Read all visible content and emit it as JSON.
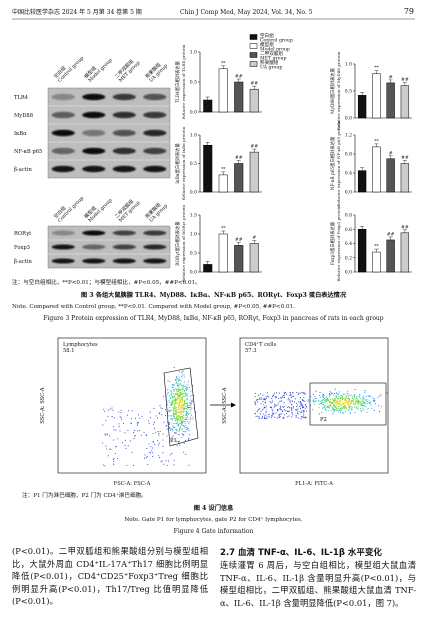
{
  "header": {
    "journal_zh": "中国比较医学杂志 2024 年 5 月第 34 卷第 5 期",
    "journal_en": "Chin J Comp Med, May 2024, Vol. 34, No. 5",
    "page": 79
  },
  "figure3": {
    "legend": [
      {
        "label_zh": "空白组",
        "label_en": "Control group",
        "color": "#111111"
      },
      {
        "label_zh": "模型组",
        "label_en": "Model group",
        "color": "#ffffff"
      },
      {
        "label_zh": "二甲双胍组",
        "label_en": "MET group",
        "color": "#555555"
      },
      {
        "label_zh": "熊果酸组",
        "label_en": "UA group",
        "color": "#cccccc"
      }
    ],
    "blots": [
      {
        "columns": [
          {
            "zh": "空白组",
            "en": "Control group"
          },
          {
            "zh": "模型组",
            "en": "Model group"
          },
          {
            "zh": "二甲双胍组",
            "en": "MET group"
          },
          {
            "zh": "熊果酸组",
            "en": "UA group"
          }
        ],
        "rows": [
          "TLR4",
          "MyD88",
          "IκBα",
          "NF-κB p65",
          "β-actin"
        ]
      },
      {
        "columns": [
          {
            "zh": "空白组",
            "en": "Control group"
          },
          {
            "zh": "模型组",
            "en": "Model group"
          },
          {
            "zh": "二甲双胍组",
            "en": "MET group"
          },
          {
            "zh": "熊果酸组",
            "en": "UA group"
          }
        ],
        "rows": [
          "RORγt",
          "Foxp3",
          "β-actin"
        ]
      }
    ],
    "charts": [
      {
        "type": "bar",
        "ylabel_zh": "TLR4蛋白相对表达量",
        "ylabel_en": "Relative expression of TLR4 protein",
        "values": [
          0.2,
          0.72,
          0.5,
          0.38
        ],
        "annotations": [
          null,
          "**",
          "##",
          "##"
        ],
        "ylim": [
          0,
          1
        ],
        "yticks": [
          {
            "value": 0,
            "label": "0.0"
          },
          0.5,
          {
            "value": 1,
            "label": "1.0"
          }
        ]
      },
      {
        "type": "bar",
        "ylabel_zh": "MyD88蛋白相对表达量",
        "ylabel_en": "Relative expression of MyD88 protein",
        "values": [
          0.42,
          0.82,
          0.65,
          0.6
        ],
        "annotations": [
          null,
          "**",
          "#",
          "##"
        ],
        "ylim": [
          0,
          1
        ],
        "yticks": [
          {
            "value": 0,
            "label": "0.0"
          },
          0.5,
          {
            "value": 1,
            "label": "1.0"
          }
        ]
      },
      {
        "type": "bar",
        "ylabel_zh": "IκBα蛋白相对表达量",
        "ylabel_en": "Relative expression of IκBα protein",
        "values": [
          0.82,
          0.3,
          0.5,
          0.7
        ],
        "annotations": [
          null,
          "**",
          "##",
          "##"
        ],
        "ylim": [
          0,
          1
        ],
        "yticks": [
          {
            "value": 0,
            "label": "0.0"
          },
          0.5,
          {
            "value": 1,
            "label": "1.0"
          }
        ]
      },
      {
        "type": "bar",
        "ylabel_zh": "NF-κB p65蛋白相对表达量",
        "ylabel_en": "Relative expression of NF-κB p65 protein",
        "values": [
          0.45,
          0.95,
          0.7,
          0.6
        ],
        "annotations": [
          null,
          "**",
          "#",
          "##"
        ],
        "ylim": [
          0,
          1.2
        ],
        "yticks": [
          {
            "value": 0,
            "label": "0.0"
          },
          0.4,
          0.8,
          1.2
        ]
      },
      {
        "type": "bar",
        "ylabel_zh": "RORγt蛋白相对表达量",
        "ylabel_en": "Relative expression of RORγt protein",
        "values": [
          0.2,
          1.0,
          0.7,
          0.75
        ],
        "annotations": [
          null,
          "**",
          "##",
          "#"
        ],
        "ylim": [
          0,
          1.5
        ],
        "yticks": [
          {
            "value": 0,
            "label": "0.0"
          },
          0.5,
          {
            "value": 1,
            "label": "1.0"
          },
          1.5
        ]
      },
      {
        "type": "bar",
        "ylabel_zh": "Foxp3蛋白相对表达量",
        "ylabel_en": "Relative expression of Foxp3 protein",
        "values": [
          0.6,
          0.28,
          0.45,
          0.55
        ],
        "annotations": [
          null,
          "**",
          "##",
          "##"
        ],
        "ylim": [
          0,
          0.8
        ],
        "yticks": [
          {
            "value": 0,
            "label": "0.0"
          },
          0.2,
          0.4,
          0.6,
          0.8
        ]
      }
    ],
    "note_zh": "注：与空白组相比，**P<0.01；与模型组相比，#P<0.05，##P<0.01。",
    "caption_zh": "图 3  各组大鼠胰腺 TLR4、MyD88、IκBα、NF-κB p65、RORγt、Foxp3 蛋白表达情况",
    "note_en": "Note. Compared with Control group, **P<0.01. Compared with Model group, #P<0.05, ##P<0.01.",
    "caption_en": "Figure 3  Protein expression of TLR4, MyD88, IκBα, NF-κB p65, RORγt, Foxp3 in pancreas of rats in each group"
  },
  "figure4": {
    "plots": [
      {
        "gate_name": "Lymphocytes",
        "gate_value": 58.1,
        "gate_id": "P1",
        "xlabel": "FSC-A: FSC-A",
        "ylabel": "SSC-A: SSC-A"
      },
      {
        "gate_name": "CD4⁺T cells",
        "gate_value": 57.3,
        "gate_id": "P2",
        "xlabel": "FL1-A: FITC-A",
        "ylabel": "SSC-A: SSC-A"
      }
    ],
    "note_zh": "注：P1 门为淋巴细胞，P2 门为 CD4⁺淋巴细胞。",
    "caption_zh": "图 4  设门信息",
    "note_en": "Note. Gate P1 for lymphocytes, gate P2 for CD4⁺ lymphocytes.",
    "caption_en": "Figure 4  Gate information"
  },
  "body": {
    "left": "(P<0.01)。二甲双胍组和熊果酸组分别与模型组相比，大鼠外周血 CD4⁺IL-17A⁺Th17 细胞比例明显降低(P<0.01)，CD4⁺CD25⁺Foxp3⁺Treg 细胞比例明显升高(P<0.01)，Th17/Treg 比值明显降低(P<0.01)。",
    "heading": "2.7  血清 TNF-α、IL-6、IL-1β 水平变化",
    "right": "连续灌胃 6 周后，与空白组相比，模型组大鼠血清 TNF-α、IL-6、IL-1β 含量明显升高(P<0.01)，与模型组相比，二甲双胍组、熊果酸组大鼠血清 TNF-α、IL-6、IL-1β 含量明显降低(P<0.01，图 7)。"
  }
}
